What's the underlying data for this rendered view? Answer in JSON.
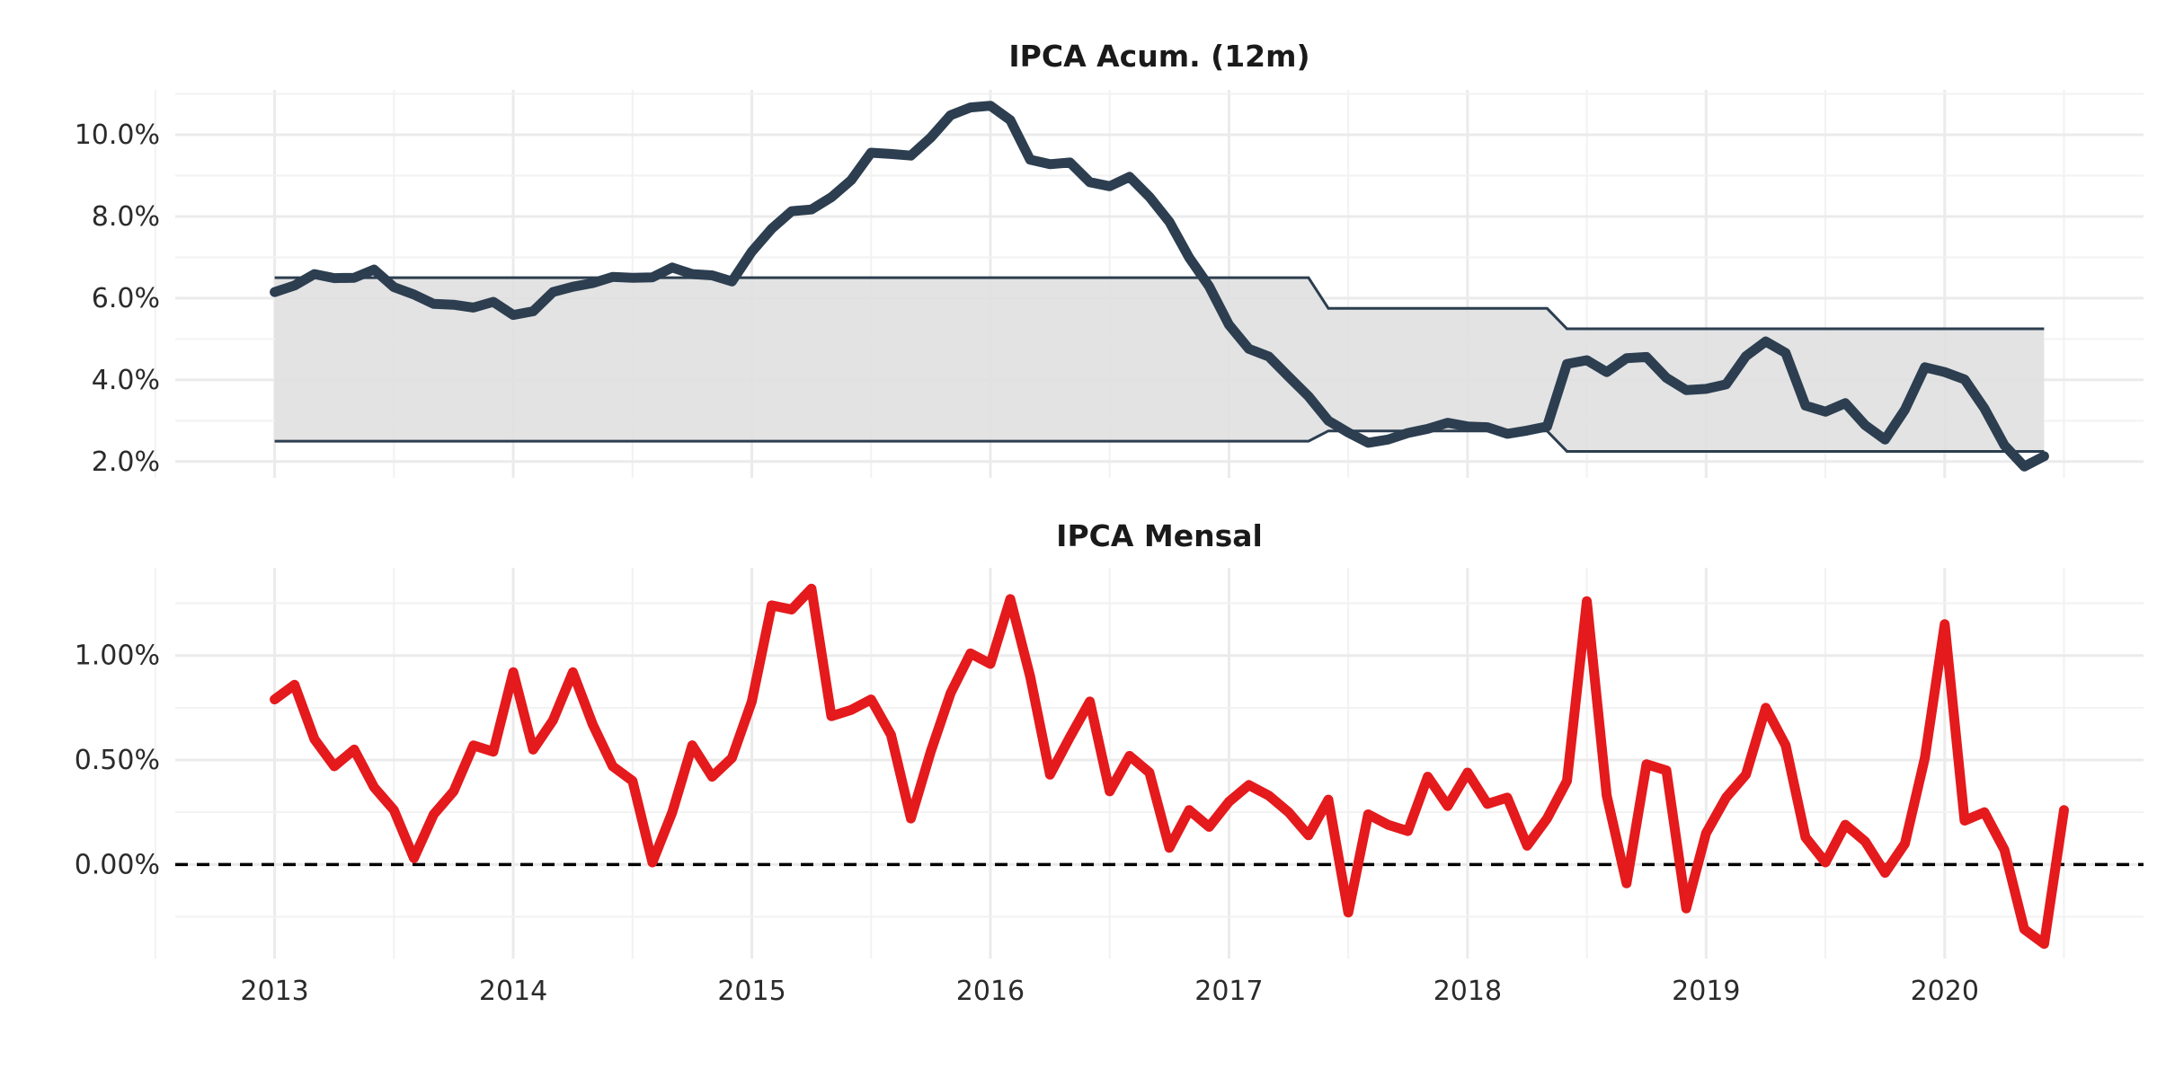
{
  "chart_data": [
    {
      "type": "line",
      "title": "IPCA Acum. (12m)",
      "xlabel": "",
      "ylabel": "",
      "x_ticks": [
        "2013",
        "2014",
        "2015",
        "2016",
        "2017",
        "2018",
        "2019",
        "2020"
      ],
      "y_ticks": [
        "2.0%",
        "4.0%",
        "6.0%",
        "8.0%",
        "10.0%"
      ],
      "xlim": [
        "2012-08",
        "2020-11"
      ],
      "ylim": [
        1.6,
        11.1
      ],
      "grid": true,
      "line_color": "#2c3e50",
      "band_color": "#e0e0e0",
      "series": [
        {
          "values": [
            [
              "2013-01",
              6.15
            ],
            [
              "2013-02",
              6.31
            ],
            [
              "2013-03",
              6.59
            ],
            [
              "2013-04",
              6.49
            ],
            [
              "2013-05",
              6.5
            ],
            [
              "2013-06",
              6.7
            ],
            [
              "2013-07",
              6.27
            ],
            [
              "2013-08",
              6.09
            ],
            [
              "2013-09",
              5.86
            ],
            [
              "2013-10",
              5.84
            ],
            [
              "2013-11",
              5.77
            ],
            [
              "2013-12",
              5.91
            ],
            [
              "2014-01",
              5.59
            ],
            [
              "2014-02",
              5.68
            ],
            [
              "2014-03",
              6.15
            ],
            [
              "2014-04",
              6.28
            ],
            [
              "2014-05",
              6.37
            ],
            [
              "2014-06",
              6.52
            ],
            [
              "2014-07",
              6.5
            ],
            [
              "2014-08",
              6.51
            ],
            [
              "2014-09",
              6.75
            ],
            [
              "2014-10",
              6.59
            ],
            [
              "2014-11",
              6.56
            ],
            [
              "2014-12",
              6.41
            ],
            [
              "2015-01",
              7.14
            ],
            [
              "2015-02",
              7.7
            ],
            [
              "2015-03",
              8.13
            ],
            [
              "2015-04",
              8.17
            ],
            [
              "2015-05",
              8.47
            ],
            [
              "2015-06",
              8.89
            ],
            [
              "2015-07",
              9.56
            ],
            [
              "2015-08",
              9.53
            ],
            [
              "2015-09",
              9.49
            ],
            [
              "2015-10",
              9.93
            ],
            [
              "2015-11",
              10.48
            ],
            [
              "2015-12",
              10.67
            ],
            [
              "2016-01",
              10.71
            ],
            [
              "2016-02",
              10.36
            ],
            [
              "2016-03",
              9.39
            ],
            [
              "2016-04",
              9.28
            ],
            [
              "2016-05",
              9.32
            ],
            [
              "2016-06",
              8.84
            ],
            [
              "2016-07",
              8.74
            ],
            [
              "2016-08",
              8.97
            ],
            [
              "2016-09",
              8.48
            ],
            [
              "2016-10",
              7.87
            ],
            [
              "2016-11",
              6.99
            ],
            [
              "2016-12",
              6.29
            ],
            [
              "2017-01",
              5.35
            ],
            [
              "2017-02",
              4.76
            ],
            [
              "2017-03",
              4.57
            ],
            [
              "2017-04",
              4.08
            ],
            [
              "2017-05",
              3.6
            ],
            [
              "2017-06",
              3.0
            ],
            [
              "2017-07",
              2.71
            ],
            [
              "2017-08",
              2.46
            ],
            [
              "2017-09",
              2.54
            ],
            [
              "2017-10",
              2.7
            ],
            [
              "2017-11",
              2.8
            ],
            [
              "2017-12",
              2.95
            ],
            [
              "2018-01",
              2.86
            ],
            [
              "2018-02",
              2.84
            ],
            [
              "2018-03",
              2.68
            ],
            [
              "2018-04",
              2.76
            ],
            [
              "2018-05",
              2.86
            ],
            [
              "2018-06",
              4.39
            ],
            [
              "2018-07",
              4.48
            ],
            [
              "2018-08",
              4.19
            ],
            [
              "2018-09",
              4.53
            ],
            [
              "2018-10",
              4.56
            ],
            [
              "2018-11",
              4.05
            ],
            [
              "2018-12",
              3.75
            ],
            [
              "2019-01",
              3.78
            ],
            [
              "2019-02",
              3.89
            ],
            [
              "2019-03",
              4.58
            ],
            [
              "2019-04",
              4.94
            ],
            [
              "2019-05",
              4.66
            ],
            [
              "2019-06",
              3.37
            ],
            [
              "2019-07",
              3.22
            ],
            [
              "2019-08",
              3.43
            ],
            [
              "2019-09",
              2.89
            ],
            [
              "2019-10",
              2.54
            ],
            [
              "2019-11",
              3.27
            ],
            [
              "2019-12",
              4.31
            ],
            [
              "2020-01",
              4.19
            ],
            [
              "2020-02",
              4.01
            ],
            [
              "2020-03",
              3.3
            ],
            [
              "2020-04",
              2.4
            ],
            [
              "2020-05",
              1.88
            ],
            [
              "2020-06",
              2.13
            ]
          ]
        }
      ],
      "band": {
        "upper": [
          [
            "2013-01",
            6.5
          ],
          [
            "2017-05",
            6.5
          ],
          [
            "2017-06",
            5.75
          ],
          [
            "2018-05",
            5.75
          ],
          [
            "2018-06",
            5.25
          ],
          [
            "2020-06",
            5.25
          ]
        ],
        "lower": [
          [
            "2013-01",
            2.5
          ],
          [
            "2017-05",
            2.5
          ],
          [
            "2017-06",
            2.75
          ],
          [
            "2018-05",
            2.75
          ],
          [
            "2018-06",
            2.25
          ],
          [
            "2020-06",
            2.25
          ]
        ]
      }
    },
    {
      "type": "line",
      "title": "IPCA Mensal",
      "xlabel": "",
      "ylabel": "",
      "x_ticks": [
        "2013",
        "2014",
        "2015",
        "2016",
        "2017",
        "2018",
        "2019",
        "2020"
      ],
      "y_ticks": [
        "0.00%",
        "0.50%",
        "1.00%"
      ],
      "xlim": [
        "2012-08",
        "2020-11"
      ],
      "ylim": [
        -0.45,
        1.42
      ],
      "grid": true,
      "line_color": "#e41a1c",
      "reference_line": {
        "y": 0,
        "style": "dashed",
        "color": "#000000"
      },
      "series": [
        {
          "values": [
            [
              "2013-01",
              0.79
            ],
            [
              "2013-02",
              0.86
            ],
            [
              "2013-03",
              0.6
            ],
            [
              "2013-04",
              0.47
            ],
            [
              "2013-05",
              0.55
            ],
            [
              "2013-06",
              0.37
            ],
            [
              "2013-07",
              0.26
            ],
            [
              "2013-08",
              0.03
            ],
            [
              "2013-09",
              0.24
            ],
            [
              "2013-10",
              0.35
            ],
            [
              "2013-11",
              0.57
            ],
            [
              "2013-12",
              0.54
            ],
            [
              "2014-01",
              0.92
            ],
            [
              "2014-02",
              0.55
            ],
            [
              "2014-03",
              0.69
            ],
            [
              "2014-04",
              0.92
            ],
            [
              "2014-05",
              0.67
            ],
            [
              "2014-06",
              0.47
            ],
            [
              "2014-07",
              0.4
            ],
            [
              "2014-08",
              0.01
            ],
            [
              "2014-09",
              0.25
            ],
            [
              "2014-10",
              0.57
            ],
            [
              "2014-11",
              0.42
            ],
            [
              "2014-12",
              0.51
            ],
            [
              "2015-01",
              0.78
            ],
            [
              "2015-02",
              1.24
            ],
            [
              "2015-03",
              1.22
            ],
            [
              "2015-04",
              1.32
            ],
            [
              "2015-05",
              0.71
            ],
            [
              "2015-06",
              0.74
            ],
            [
              "2015-07",
              0.79
            ],
            [
              "2015-08",
              0.62
            ],
            [
              "2015-09",
              0.22
            ],
            [
              "2015-10",
              0.54
            ],
            [
              "2015-11",
              0.82
            ],
            [
              "2015-12",
              1.01
            ],
            [
              "2016-01",
              0.96
            ],
            [
              "2016-02",
              1.27
            ],
            [
              "2016-03",
              0.9
            ],
            [
              "2016-04",
              0.43
            ],
            [
              "2016-05",
              0.61
            ],
            [
              "2016-06",
              0.78
            ],
            [
              "2016-07",
              0.35
            ],
            [
              "2016-08",
              0.52
            ],
            [
              "2016-09",
              0.44
            ],
            [
              "2016-10",
              0.08
            ],
            [
              "2016-11",
              0.26
            ],
            [
              "2016-12",
              0.18
            ],
            [
              "2017-01",
              0.3
            ],
            [
              "2017-02",
              0.38
            ],
            [
              "2017-03",
              0.33
            ],
            [
              "2017-04",
              0.25
            ],
            [
              "2017-05",
              0.14
            ],
            [
              "2017-06",
              0.31
            ],
            [
              "2017-07",
              -0.23
            ],
            [
              "2017-08",
              0.24
            ],
            [
              "2017-09",
              0.19
            ],
            [
              "2017-10",
              0.16
            ],
            [
              "2017-11",
              0.42
            ],
            [
              "2017-12",
              0.28
            ],
            [
              "2018-01",
              0.44
            ],
            [
              "2018-02",
              0.29
            ],
            [
              "2018-03",
              0.32
            ],
            [
              "2018-04",
              0.09
            ],
            [
              "2018-05",
              0.22
            ],
            [
              "2018-06",
              0.4
            ],
            [
              "2018-07",
              1.26
            ],
            [
              "2018-08",
              0.33
            ],
            [
              "2018-09",
              -0.09
            ],
            [
              "2018-10",
              0.48
            ],
            [
              "2018-11",
              0.45
            ],
            [
              "2018-12",
              -0.21
            ],
            [
              "2019-01",
              0.15
            ],
            [
              "2019-02",
              0.32
            ],
            [
              "2019-03",
              0.43
            ],
            [
              "2019-04",
              0.75
            ],
            [
              "2019-05",
              0.57
            ],
            [
              "2019-06",
              0.13
            ],
            [
              "2019-07",
              0.01
            ],
            [
              "2019-08",
              0.19
            ],
            [
              "2019-09",
              0.11
            ],
            [
              "2019-10",
              -0.04
            ],
            [
              "2019-11",
              0.1
            ],
            [
              "2019-12",
              0.51
            ],
            [
              "2020-01",
              1.15
            ],
            [
              "2020-02",
              0.21
            ],
            [
              "2020-03",
              0.25
            ],
            [
              "2020-04",
              0.07
            ],
            [
              "2020-05",
              -0.31
            ],
            [
              "2020-06",
              -0.38
            ],
            [
              "2020-07",
              0.26
            ]
          ]
        }
      ]
    }
  ]
}
